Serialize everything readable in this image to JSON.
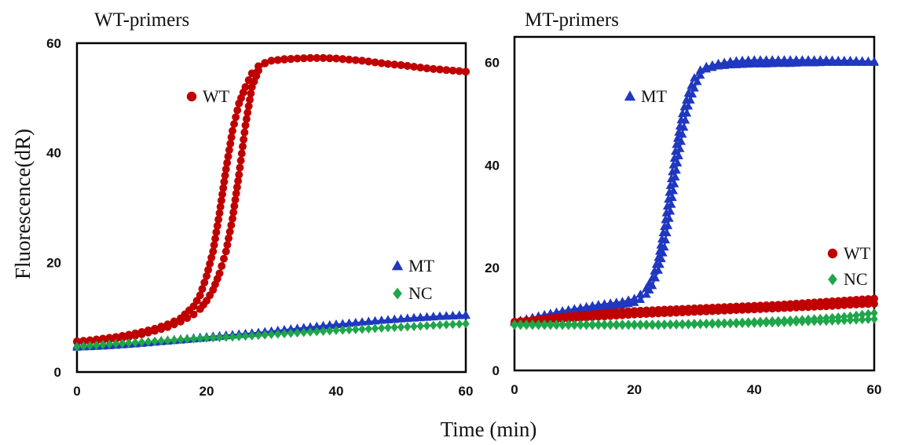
{
  "figure": {
    "ylabel": "Fluorescence(dR)",
    "xlabel": "Time (min)"
  },
  "chart_data": [
    {
      "type": "line",
      "title": "WT-primers",
      "xlim": [
        0,
        60
      ],
      "ylim": [
        0,
        60
      ],
      "xticks": [
        "0",
        "20",
        "40",
        "60"
      ],
      "yticks": [
        "0",
        "20",
        "40",
        "60"
      ],
      "series": [
        {
          "name": "WT",
          "color": "#c00000",
          "marker": "circle",
          "labeled": true,
          "x": [
            0,
            2,
            4,
            6,
            8,
            10,
            12,
            14,
            16,
            18,
            19,
            20,
            21,
            22,
            23,
            24,
            25,
            26,
            27,
            28,
            29,
            30,
            32,
            34,
            36,
            38,
            40,
            42,
            44,
            46,
            48,
            50,
            52,
            54,
            56,
            58,
            60
          ],
          "y": [
            5.6,
            5.8,
            6.1,
            6.4,
            6.8,
            7.3,
            7.9,
            8.7,
            9.8,
            12,
            14,
            17.5,
            22,
            29,
            37,
            44,
            49,
            52,
            54.5,
            55.8,
            56.4,
            56.8,
            57.1,
            57.2,
            57.3,
            57.3,
            57.2,
            57,
            56.8,
            56.5,
            56.2,
            56,
            55.7,
            55.4,
            55.2,
            55,
            54.8
          ]
        },
        {
          "name": "WT",
          "color": "#c00000",
          "marker": "circle",
          "labeled": false,
          "x": [
            0,
            2,
            4,
            6,
            8,
            10,
            12,
            14,
            16,
            18,
            19,
            20,
            21,
            22,
            23,
            24,
            25,
            26,
            27,
            28,
            29,
            30,
            32,
            34,
            36,
            38,
            40,
            42,
            44,
            46,
            48,
            50,
            52,
            54,
            56,
            58,
            60
          ],
          "y": [
            5.5,
            5.6,
            5.8,
            6,
            6.4,
            6.9,
            7.5,
            8.2,
            9.2,
            10.5,
            11.5,
            13,
            15,
            18,
            22,
            28,
            36,
            45,
            52,
            55,
            56.3,
            56.8,
            57,
            57.2,
            57.3,
            57.3,
            57.2,
            57,
            56.8,
            56.5,
            56.2,
            56,
            55.7,
            55.4,
            55.2,
            55,
            54.8
          ]
        },
        {
          "name": "MT",
          "color": "#2038c0",
          "marker": "triangle",
          "labeled": true,
          "x": [
            0,
            4,
            8,
            12,
            16,
            20,
            24,
            28,
            32,
            36,
            40,
            44,
            48,
            52,
            56,
            60
          ],
          "y": [
            4.8,
            4.9,
            5.2,
            5.6,
            6,
            6.4,
            6.8,
            7.2,
            7.7,
            8.2,
            8.7,
            9.1,
            9.5,
            9.8,
            10.1,
            10.3
          ]
        },
        {
          "name": "MT",
          "color": "#2038c0",
          "marker": "triangle",
          "labeled": false,
          "x": [
            0,
            4,
            8,
            12,
            16,
            20,
            24,
            28,
            32,
            36,
            40,
            44,
            48,
            52,
            56,
            60
          ],
          "y": [
            4.5,
            4.7,
            5,
            5.4,
            5.8,
            6.2,
            6.7,
            7.1,
            7.6,
            8.1,
            8.6,
            9.1,
            9.5,
            9.9,
            10.2,
            10.4
          ]
        },
        {
          "name": "NC",
          "color": "#1fa64a",
          "marker": "diamond",
          "labeled": true,
          "x": [
            0,
            4,
            8,
            12,
            16,
            20,
            24,
            28,
            32,
            36,
            40,
            44,
            48,
            52,
            56,
            60
          ],
          "y": [
            4.6,
            5,
            5.3,
            5.6,
            5.9,
            6.2,
            6.4,
            6.7,
            7,
            7.3,
            7.6,
            7.8,
            8.1,
            8.3,
            8.6,
            8.8
          ]
        }
      ],
      "legend": [
        {
          "name": "WT",
          "color": "#c00000",
          "marker": "circle"
        },
        {
          "name": "MT",
          "color": "#2038c0",
          "marker": "triangle"
        },
        {
          "name": "NC",
          "color": "#1fa64a",
          "marker": "diamond"
        }
      ]
    },
    {
      "type": "line",
      "title": "MT-primers",
      "xlim": [
        0,
        60
      ],
      "ylim": [
        0,
        65
      ],
      "xticks": [
        "0",
        "20",
        "40",
        "60"
      ],
      "yticks": [
        "0",
        "20",
        "40",
        "60"
      ],
      "series": [
        {
          "name": "MT",
          "color": "#2038c0",
          "marker": "triangle",
          "labeled": true,
          "x": [
            0,
            2,
            4,
            6,
            8,
            10,
            12,
            14,
            16,
            18,
            20,
            21,
            22,
            23,
            24,
            25,
            26,
            27,
            28,
            29,
            30,
            31,
            32,
            34,
            36,
            38,
            40,
            42,
            44,
            46,
            48,
            50,
            52,
            54,
            56,
            58,
            60
          ],
          "y": [
            9.5,
            10,
            10.6,
            11.1,
            11.6,
            12,
            12.4,
            12.8,
            13.1,
            13.4,
            14,
            14.8,
            16,
            18,
            22,
            28,
            36,
            44,
            50,
            54,
            57,
            58.5,
            59.2,
            59.8,
            60.2,
            60.4,
            60.5,
            60.5,
            60.5,
            60.5,
            60.5,
            60.5,
            60.5,
            60.4,
            60.4,
            60.3,
            60.2
          ]
        },
        {
          "name": "MT",
          "color": "#2038c0",
          "marker": "triangle",
          "labeled": false,
          "x": [
            0,
            2,
            4,
            6,
            8,
            10,
            12,
            14,
            16,
            18,
            20,
            21,
            22,
            23,
            24,
            25,
            26,
            27,
            28,
            29,
            30,
            31,
            32,
            34,
            36,
            38,
            40,
            42,
            44,
            46,
            48,
            50,
            52,
            54,
            56,
            58,
            60
          ],
          "y": [
            9.3,
            9.7,
            10.2,
            10.7,
            11.1,
            11.5,
            11.9,
            12.2,
            12.5,
            12.8,
            13.2,
            13.8,
            14.8,
            16.5,
            19.5,
            24,
            31,
            39,
            46,
            51.5,
            55,
            57.5,
            58.7,
            59.3,
            59.5,
            59.6,
            59.7,
            59.7,
            59.8,
            59.8,
            59.9,
            59.9,
            60,
            60,
            60,
            60,
            60
          ]
        },
        {
          "name": "WT",
          "color": "#c00000",
          "marker": "circle",
          "labeled": true,
          "x": [
            0,
            4,
            8,
            12,
            16,
            20,
            24,
            28,
            32,
            36,
            40,
            44,
            48,
            52,
            56,
            60
          ],
          "y": [
            9.5,
            10,
            10.5,
            10.9,
            11.3,
            11.6,
            11.8,
            12,
            12.2,
            12.4,
            12.6,
            12.8,
            13.1,
            13.4,
            13.7,
            14
          ]
        },
        {
          "name": "WT",
          "color": "#c00000",
          "marker": "circle",
          "labeled": false,
          "x": [
            0,
            4,
            8,
            12,
            16,
            20,
            24,
            28,
            32,
            36,
            40,
            44,
            48,
            52,
            56,
            60
          ],
          "y": [
            9.2,
            9.6,
            10,
            10.3,
            10.6,
            10.9,
            11.1,
            11.3,
            11.5,
            11.7,
            11.9,
            12.1,
            12.3,
            12.5,
            12.8,
            13
          ]
        },
        {
          "name": "NC",
          "color": "#1fa64a",
          "marker": "diamond",
          "labeled": true,
          "x": [
            0,
            4,
            8,
            12,
            16,
            20,
            24,
            28,
            32,
            36,
            40,
            44,
            48,
            52,
            56,
            60
          ],
          "y": [
            9,
            9,
            9,
            9,
            9,
            9,
            9,
            9.1,
            9.2,
            9.3,
            9.5,
            9.7,
            9.9,
            10.2,
            10.6,
            11.2
          ]
        },
        {
          "name": "NC",
          "color": "#1fa64a",
          "marker": "diamond",
          "labeled": false,
          "x": [
            0,
            4,
            8,
            12,
            16,
            20,
            24,
            28,
            32,
            36,
            40,
            44,
            48,
            52,
            56,
            60
          ],
          "y": [
            8.8,
            8.8,
            8.8,
            8.8,
            8.8,
            8.8,
            8.8,
            8.9,
            9,
            9.1,
            9.2,
            9.3,
            9.5,
            9.6,
            9.8,
            10
          ]
        }
      ],
      "legend": [
        {
          "name": "MT",
          "color": "#2038c0",
          "marker": "triangle"
        },
        {
          "name": "WT",
          "color": "#c00000",
          "marker": "circle"
        },
        {
          "name": "NC",
          "color": "#1fa64a",
          "marker": "diamond"
        }
      ]
    }
  ]
}
